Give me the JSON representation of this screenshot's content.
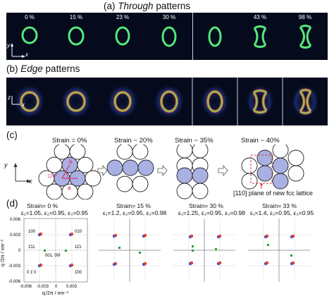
{
  "panel_a": {
    "label": "(a)",
    "title": "Through",
    "title_rest": " patterns",
    "percents": [
      "0 %",
      "15 %",
      "23 %",
      "30 %",
      "43 %",
      "98 %"
    ],
    "axis_y": "y",
    "axis_x": "x"
  },
  "panel_b": {
    "label": "(b)",
    "title": "Edge",
    "title_rest": " patterns",
    "axis_z": "z",
    "axis_x": "x"
  },
  "panel_c": {
    "label": "(c)",
    "strains": [
      "Strain = 0%",
      "Strain ~ 20%",
      "Strain ~ 35%",
      "Strain ~ 40%"
    ],
    "axis_y": "y",
    "axis_x": "x",
    "vec_b": "b",
    "vec_a": "a",
    "angle": "120°",
    "caption": "[110] plane of new fcc lattice"
  },
  "panel_d": {
    "label": "(d)",
    "ylabel": "q",
    "xlabel": "q",
    "unit_text": "/2π / nm⁻¹",
    "plots": [
      {
        "strain": "Strain= 0 %",
        "eps": "ε₁=1.05, ε₂=0.95, ε₃=0.95"
      },
      {
        "strain": "Strain= 15 %",
        "eps": "ε₁=1.2, ε₂=0.95, ε₃=0.98"
      },
      {
        "strain": "Strain= 30 %",
        "eps": "ε₁=1.25, ε₂=0.95, ε₃=0.98"
      },
      {
        "strain": "Strain= 33 %",
        "eps": "ε₁=1.4, ε₂=0.95, ε₃=0.95"
      }
    ],
    "ticks": [
      "-0.006",
      "-0.003",
      "0",
      "0.003",
      "0.006"
    ],
    "miller": [
      "100",
      "010",
      "1̄11",
      "001, 00ī",
      "0 1̄ 0",
      "1̄00",
      "11̄1"
    ]
  }
}
